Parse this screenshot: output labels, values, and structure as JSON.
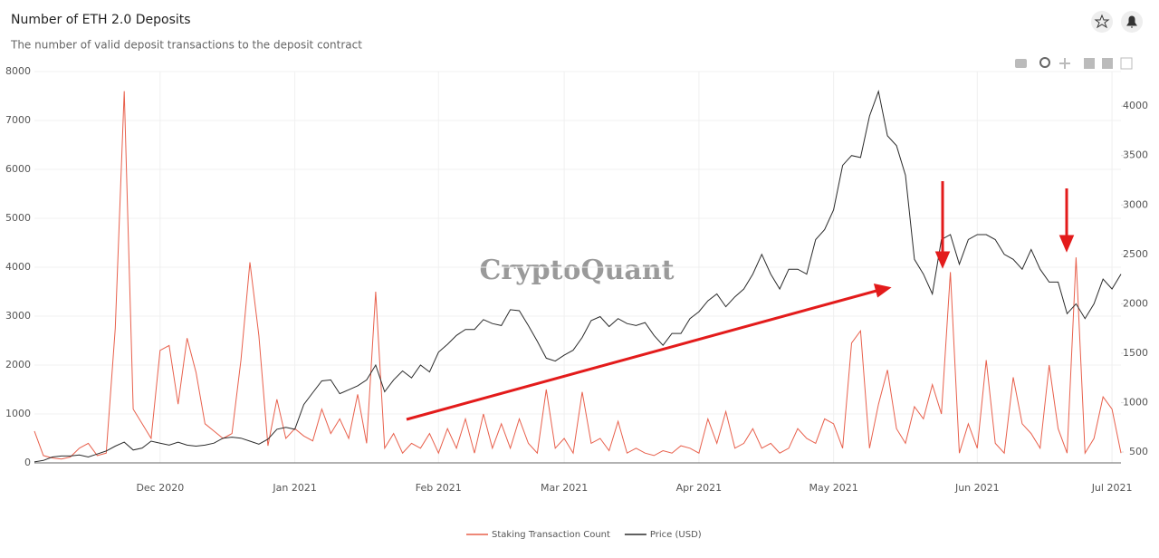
{
  "chart_data": {
    "type": "line",
    "title": "Number of ETH 2.0 Deposits",
    "subtitle": "The number of valid deposit transactions to the deposit contract",
    "watermark": "CryptoQuant",
    "categories": [
      null,
      null,
      null,
      null,
      null,
      null,
      null,
      null,
      null,
      null,
      null,
      null,
      null,
      null,
      "Dec 2020",
      null,
      null,
      null,
      null,
      null,
      null,
      null,
      null,
      null,
      null,
      null,
      null,
      null,
      null,
      "Jan 2021",
      null,
      null,
      null,
      null,
      null,
      null,
      null,
      null,
      null,
      null,
      null,
      null,
      null,
      null,
      null,
      "Feb 2021",
      null,
      null,
      null,
      null,
      null,
      null,
      null,
      null,
      null,
      null,
      null,
      null,
      null,
      "Mar 2021",
      null,
      null,
      null,
      null,
      null,
      null,
      null,
      null,
      null,
      null,
      null,
      null,
      null,
      null,
      "Apr 2021",
      null,
      null,
      null,
      null,
      null,
      null,
      null,
      null,
      null,
      null,
      null,
      null,
      null,
      null,
      "May 2021",
      null,
      null,
      null,
      null,
      null,
      null,
      null,
      null,
      null,
      null,
      null,
      null,
      null,
      null,
      null,
      "Jun 2021",
      null,
      null,
      null,
      null,
      null,
      null,
      null,
      null,
      null,
      null,
      null,
      null,
      null,
      null,
      "Jul 2021",
      null
    ],
    "series": [
      {
        "name": "Staking Transaction Count",
        "color": "#e8604c",
        "values": [
          650,
          150,
          100,
          80,
          120,
          300,
          400,
          150,
          200,
          2750,
          7600,
          1100,
          800,
          500,
          2300,
          2400,
          1200,
          2550,
          1850,
          800,
          650,
          500,
          600,
          2100,
          4100,
          2600,
          350,
          1300,
          500,
          700,
          550,
          450,
          1100,
          600,
          900,
          500,
          1400,
          400,
          3500,
          300,
          600,
          200,
          400,
          300,
          600,
          200,
          700,
          300,
          900,
          200,
          1000,
          300,
          800,
          300,
          900,
          400,
          200,
          1500,
          300,
          500,
          200,
          1450,
          400,
          500,
          250,
          850,
          200,
          300,
          200,
          150,
          250,
          200,
          350,
          300,
          200,
          900,
          400,
          1050,
          300,
          400,
          700,
          300,
          400,
          200,
          300,
          700,
          500,
          400,
          900,
          800,
          300,
          2450,
          2700,
          300,
          1200,
          1900,
          700,
          400,
          1150,
          900,
          1600,
          1000,
          3900,
          200,
          800,
          300,
          2100,
          400,
          200,
          1750,
          800,
          600,
          300,
          2000,
          700,
          200,
          4200,
          200,
          500,
          1350,
          1100,
          200
        ]
      },
      {
        "name": "Price (USD)",
        "color": "#2b2b2b",
        "axis": "y2",
        "values": [
          400,
          415,
          450,
          460,
          460,
          470,
          450,
          480,
          510,
          560,
          600,
          520,
          540,
          610,
          590,
          570,
          600,
          570,
          560,
          570,
          590,
          640,
          650,
          640,
          610,
          580,
          630,
          730,
          750,
          730,
          980,
          1100,
          1220,
          1230,
          1090,
          1130,
          1170,
          1230,
          1380,
          1110,
          1230,
          1320,
          1250,
          1380,
          1310,
          1510,
          1590,
          1680,
          1740,
          1740,
          1840,
          1800,
          1780,
          1940,
          1930,
          1780,
          1620,
          1450,
          1420,
          1480,
          1530,
          1660,
          1830,
          1870,
          1770,
          1850,
          1800,
          1780,
          1810,
          1680,
          1580,
          1700,
          1700,
          1850,
          1920,
          2030,
          2100,
          1970,
          2070,
          2150,
          2300,
          2500,
          2300,
          2150,
          2350,
          2350,
          2300,
          2650,
          2750,
          2950,
          3400,
          3500,
          3480,
          3900,
          4150,
          3700,
          3600,
          3300,
          2450,
          2300,
          2100,
          2650,
          2700,
          2400,
          2650,
          2700,
          2700,
          2650,
          2500,
          2450,
          2350,
          2550,
          2350,
          2220,
          2220,
          1900,
          2000,
          1850,
          2000,
          2250,
          2150,
          2300
        ]
      }
    ],
    "ylim": [
      0,
      8000
    ],
    "yticks": [
      0,
      1000,
      2000,
      3000,
      4000,
      5000,
      6000,
      7000,
      8000
    ],
    "y2lim": [
      390,
      4350
    ],
    "y2ticks": [
      500,
      1000,
      1500,
      2000,
      2500,
      3000,
      3500,
      4000
    ],
    "grid": true,
    "legend": "bottom"
  }
}
